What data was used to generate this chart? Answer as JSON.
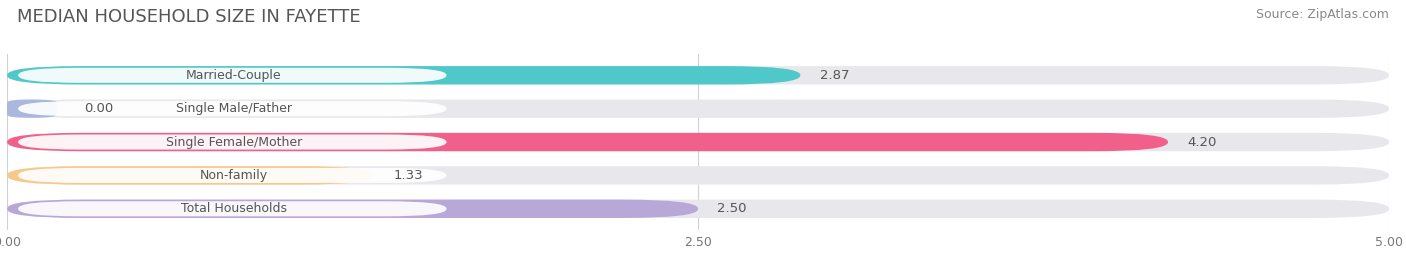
{
  "title": "MEDIAN HOUSEHOLD SIZE IN FAYETTE",
  "source": "Source: ZipAtlas.com",
  "categories": [
    "Married-Couple",
    "Single Male/Father",
    "Single Female/Mother",
    "Non-family",
    "Total Households"
  ],
  "values": [
    2.87,
    0.0,
    4.2,
    1.33,
    2.5
  ],
  "bar_colors": [
    "#4ec8c8",
    "#aab8df",
    "#f0608a",
    "#f8c888",
    "#b8a8d8"
  ],
  "bar_bg_color": "#e8e8ec",
  "xlim": [
    0,
    5.0
  ],
  "xticks": [
    0.0,
    2.5,
    5.0
  ],
  "xtick_labels": [
    "0.00",
    "2.50",
    "5.00"
  ],
  "title_fontsize": 13,
  "source_fontsize": 9,
  "label_fontsize": 9,
  "value_fontsize": 9.5,
  "background_color": "#ffffff"
}
